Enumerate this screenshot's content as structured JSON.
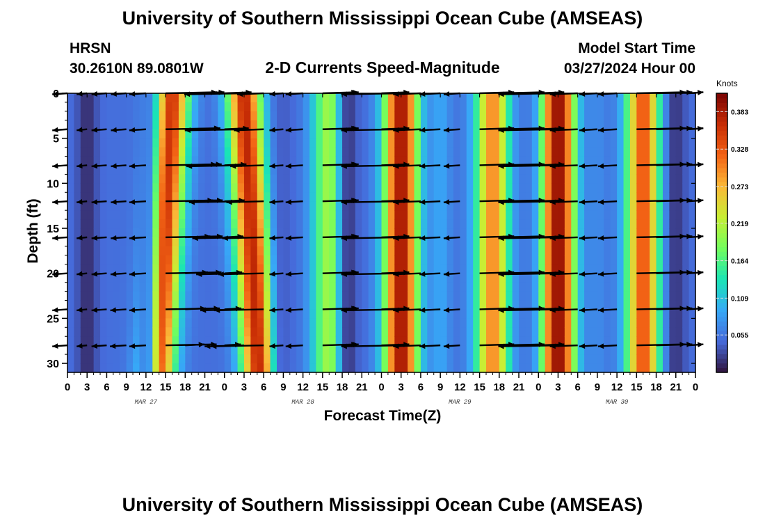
{
  "header": {
    "title": "University of Southern Mississippi Ocean Cube (AMSEAS)",
    "station": "HRSN",
    "coords": "30.2610N  89.0801W",
    "subtitle": "2-D Currents Speed-Magnitude",
    "model_start_label": "Model Start Time",
    "model_start_value": "03/27/2024 Hour 00"
  },
  "footer": {
    "title": "University of Southern Mississippi Ocean Cube (AMSEAS)"
  },
  "chart_data": {
    "type": "heatmap",
    "title": "2-D Currents Speed-Magnitude",
    "xlabel": "Forecast Time(Z)",
    "ylabel": "Depth (ft)",
    "ylim": [
      0,
      31
    ],
    "y_inverted": true,
    "x_tick_labels": [
      "0",
      "3",
      "6",
      "9",
      "12",
      "15",
      "18",
      "21",
      "0",
      "3",
      "6",
      "9",
      "12",
      "15",
      "18",
      "21",
      "0",
      "3",
      "6",
      "9",
      "12",
      "15",
      "18",
      "21",
      "0",
      "3",
      "6",
      "9",
      "12",
      "15",
      "18",
      "21",
      "0"
    ],
    "y_ticks": [
      0,
      5,
      10,
      15,
      20,
      25,
      30
    ],
    "y_tick_labels": [
      "0",
      "5",
      "10",
      "15",
      "20",
      "25",
      "30"
    ],
    "date_labels": [
      "MAR 27",
      "MAR 28",
      "MAR 29",
      "MAR 30"
    ],
    "date_label_hours": [
      12,
      36,
      60,
      84
    ],
    "x_range_hours": [
      0,
      96
    ],
    "colorbar": {
      "unit": "Knots",
      "range": [
        0,
        0.41
      ],
      "tick_values": [
        0.055,
        0.109,
        0.164,
        0.219,
        0.273,
        0.328,
        0.383
      ],
      "tick_labels": [
        "0.055",
        "0.109",
        "0.164",
        "0.219",
        "0.273",
        "0.328",
        "0.383"
      ],
      "colormap": [
        "#30123b",
        "#4669d9",
        "#37a8f7",
        "#1ae4b6",
        "#72fe5e",
        "#c7ef34",
        "#fbb938",
        "#f36315",
        "#c72d05",
        "#7a0403"
      ]
    },
    "arrow_depths_ft": [
      0,
      4,
      8,
      12,
      16,
      20,
      24,
      28
    ],
    "arrow_hours": [
      0,
      3,
      6,
      9,
      12,
      15,
      18,
      24,
      27,
      30,
      33,
      36,
      39,
      42,
      48,
      51,
      54,
      57,
      60,
      63,
      66,
      72,
      75,
      78,
      81,
      84,
      87,
      90,
      95
    ]
  }
}
